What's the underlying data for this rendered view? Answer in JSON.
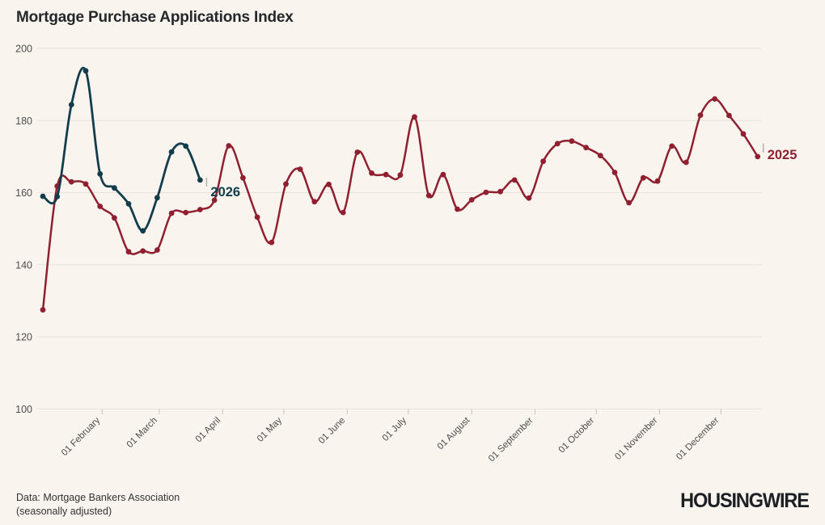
{
  "chart_data": {
    "type": "line",
    "title": "Mortgage Purchase Applications Index",
    "x_axis": {
      "unit": "day-of-year",
      "tick_labels": [
        "01 February",
        "01 March",
        "01 April",
        "01 May",
        "01 June",
        "01 July",
        "01 August",
        "01 September",
        "01 October",
        "01 November",
        "01 December"
      ],
      "tick_days": [
        32,
        60,
        91,
        121,
        152,
        182,
        213,
        244,
        274,
        305,
        335
      ]
    },
    "y_axis": {
      "ticks": [
        100,
        120,
        140,
        160,
        180,
        200
      ],
      "tick_labels": [
        "100",
        "120",
        "140",
        "160",
        "180",
        "200"
      ],
      "range": [
        100,
        200
      ]
    },
    "grid": "horizontal",
    "legend": "end-of-line-labels",
    "series": [
      {
        "name": "2025",
        "color": "#901f30",
        "start_day": 3,
        "interval_days": 7,
        "values": [
          127.5,
          161.8,
          163.0,
          162.4,
          156.2,
          153.0,
          143.6,
          143.8,
          144.1,
          154.3,
          154.5,
          155.3,
          157.9,
          173.0,
          164.1,
          153.2,
          146.2,
          162.4,
          166.5,
          157.5,
          162.3,
          154.5,
          171.2,
          165.4,
          165.0,
          164.9,
          181.0,
          159.2,
          165.0,
          155.4,
          158.0,
          160.1,
          160.3,
          163.5,
          158.5,
          168.7,
          173.6,
          174.3,
          172.5,
          170.3,
          165.6,
          157.2,
          164.1,
          163.2,
          172.9,
          168.4,
          181.5,
          186.0,
          181.4,
          176.3,
          170.0
        ]
      },
      {
        "name": "2026",
        "color": "#133d4d",
        "start_day": 3,
        "interval_days": 7,
        "values": [
          159.0,
          158.9,
          184.4,
          193.8,
          165.2,
          161.3,
          156.9,
          149.4,
          158.6,
          171.3,
          172.9,
          163.5
        ]
      }
    ]
  },
  "footer": {
    "source_line1": "Data: Mortgage Bankers Association",
    "source_line2": "(seasonally adjusted)",
    "logo": "HOUSINGWIRE"
  },
  "colors": {
    "background": "#f9f5ee",
    "grid": "#e8e3da",
    "axis_text": "#4d4c49",
    "month_tick": "#c9c4bb",
    "label_pointer_tick": "#b5b1a9",
    "series_2025": "#901f30",
    "series_2026": "#133d4d"
  }
}
